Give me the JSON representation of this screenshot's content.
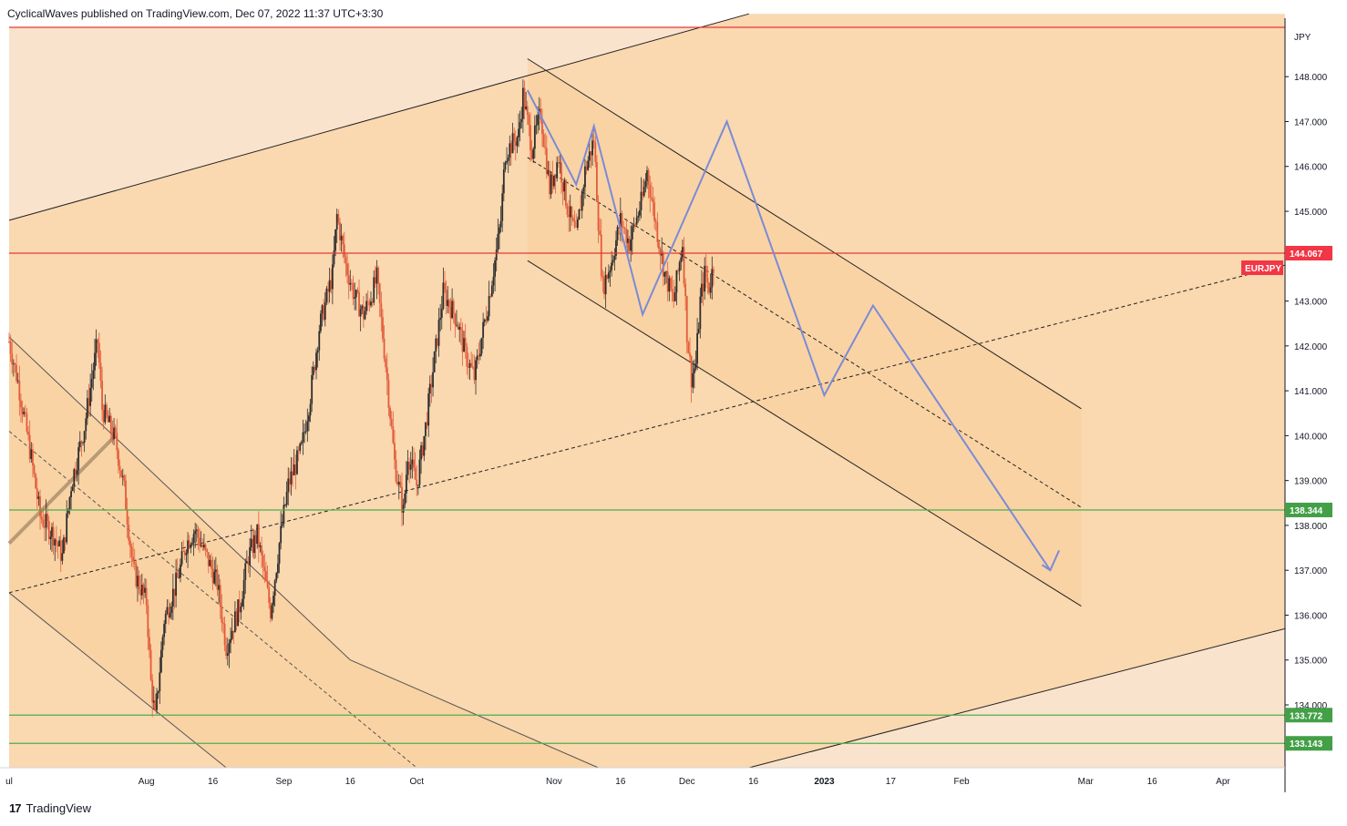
{
  "header": {
    "publisher": "CyclicalWaves published on TradingView.com, Dec 07, 2022 11:37 UTC+3:30"
  },
  "footer": {
    "brand": "TradingView",
    "logo_glyph": "17"
  },
  "colors": {
    "bg_light": "#fae3cc",
    "bg_mid": "#fad8b0",
    "bg_dark": "#f9cf9a",
    "up_candle": "#2d2d2d",
    "down_candle": "#e25c3b",
    "red_line": "#e53935",
    "green_line": "#4caf50",
    "projection": "#7a8bd6",
    "price_label_red": "#f23645",
    "price_label_green": "#43a047"
  },
  "chart_data": {
    "type": "candlestick",
    "symbol": "EURJPY",
    "currency": "JPY",
    "ylim": [
      132.6,
      149.1
    ],
    "y_ticks": [
      134,
      135,
      136,
      137,
      138,
      139,
      140,
      141,
      142,
      143,
      144,
      145,
      146,
      147,
      148
    ],
    "y_tick_labels": [
      "134.000",
      "135.000",
      "136.000",
      "137.000",
      "138.000",
      "139.000",
      "140.000",
      "141.000",
      "142.000",
      "143.000",
      "144.000",
      "145.000",
      "146.000",
      "147.000",
      "148.000"
    ],
    "x_range": [
      "2022-07-01",
      "2023-04-15"
    ],
    "x_ticks": [
      {
        "date": "2022-07-01",
        "label": "ul"
      },
      {
        "date": "2022-08-01",
        "label": "Aug"
      },
      {
        "date": "2022-08-16",
        "label": "16"
      },
      {
        "date": "2022-09-01",
        "label": "Sep"
      },
      {
        "date": "2022-09-16",
        "label": "16"
      },
      {
        "date": "2022-10-01",
        "label": "Oct"
      },
      {
        "date": "2022-11-01",
        "label": "Nov"
      },
      {
        "date": "2022-11-16",
        "label": "16"
      },
      {
        "date": "2022-12-01",
        "label": "Dec"
      },
      {
        "date": "2022-12-16",
        "label": "16"
      },
      {
        "date": "2023-01-01",
        "label": "2023"
      },
      {
        "date": "2023-01-16",
        "label": "17"
      },
      {
        "date": "2023-02-01",
        "label": "Feb"
      },
      {
        "date": "2023-03-01",
        "label": "Mar"
      },
      {
        "date": "2023-03-16",
        "label": "16"
      },
      {
        "date": "2023-04-01",
        "label": "Apr"
      }
    ],
    "price_path": [
      [
        "2022-07-01",
        142.1
      ],
      [
        "2022-07-03",
        141.2
      ],
      [
        "2022-07-06",
        139.5
      ],
      [
        "2022-07-08",
        138.2
      ],
      [
        "2022-07-11",
        137.8
      ],
      [
        "2022-07-13",
        137.3
      ],
      [
        "2022-07-15",
        138.9
      ],
      [
        "2022-07-18",
        140.2
      ],
      [
        "2022-07-20",
        141.5
      ],
      [
        "2022-07-21",
        142.1
      ],
      [
        "2022-07-22",
        140.6
      ],
      [
        "2022-07-25",
        139.9
      ],
      [
        "2022-07-27",
        138.8
      ],
      [
        "2022-07-29",
        137.0
      ],
      [
        "2022-08-01",
        136.3
      ],
      [
        "2022-08-02",
        134.5
      ],
      [
        "2022-08-03",
        133.7
      ],
      [
        "2022-08-05",
        135.9
      ],
      [
        "2022-08-08",
        136.8
      ],
      [
        "2022-08-10",
        137.6
      ],
      [
        "2022-08-12",
        137.9
      ],
      [
        "2022-08-15",
        137.2
      ],
      [
        "2022-08-17",
        136.7
      ],
      [
        "2022-08-19",
        135.3
      ],
      [
        "2022-08-22",
        136.2
      ],
      [
        "2022-08-24",
        137.3
      ],
      [
        "2022-08-26",
        137.8
      ],
      [
        "2022-08-29",
        136.1
      ],
      [
        "2022-08-31",
        137.6
      ],
      [
        "2022-09-02",
        138.9
      ],
      [
        "2022-09-05",
        139.7
      ],
      [
        "2022-09-07",
        140.9
      ],
      [
        "2022-09-09",
        142.4
      ],
      [
        "2022-09-12",
        143.6
      ],
      [
        "2022-09-13",
        144.9
      ],
      [
        "2022-09-15",
        143.8
      ],
      [
        "2022-09-17",
        143.1
      ],
      [
        "2022-09-19",
        142.7
      ],
      [
        "2022-09-21",
        143.2
      ],
      [
        "2022-09-22",
        143.5
      ],
      [
        "2022-09-24",
        141.6
      ],
      [
        "2022-09-26",
        139.4
      ],
      [
        "2022-09-28",
        138.3
      ],
      [
        "2022-09-29",
        139.6
      ],
      [
        "2022-10-01",
        138.9
      ],
      [
        "2022-10-03",
        140.2
      ],
      [
        "2022-10-05",
        141.7
      ],
      [
        "2022-10-07",
        143.2
      ],
      [
        "2022-10-10",
        142.6
      ],
      [
        "2022-10-12",
        141.8
      ],
      [
        "2022-10-14",
        141.3
      ],
      [
        "2022-10-17",
        142.9
      ],
      [
        "2022-10-19",
        144.1
      ],
      [
        "2022-10-20",
        144.8
      ],
      [
        "2022-10-21",
        146.3
      ],
      [
        "2022-10-24",
        146.7
      ],
      [
        "2022-10-25",
        147.6
      ],
      [
        "2022-10-27",
        146.4
      ],
      [
        "2022-10-29",
        147.2
      ],
      [
        "2022-10-31",
        145.5
      ],
      [
        "2022-11-02",
        146.2
      ],
      [
        "2022-11-04",
        145.1
      ],
      [
        "2022-11-06",
        144.4
      ],
      [
        "2022-11-08",
        145.9
      ],
      [
        "2022-11-10",
        146.6
      ],
      [
        "2022-11-11",
        144.8
      ],
      [
        "2022-11-12",
        143.3
      ],
      [
        "2022-11-14",
        143.9
      ],
      [
        "2022-11-16",
        144.8
      ],
      [
        "2022-11-18",
        144.3
      ],
      [
        "2022-11-21",
        145.3
      ],
      [
        "2022-11-22",
        145.9
      ],
      [
        "2022-11-24",
        144.7
      ],
      [
        "2022-11-26",
        143.6
      ],
      [
        "2022-11-28",
        143.0
      ],
      [
        "2022-11-30",
        144.3
      ],
      [
        "2022-12-01",
        142.3
      ],
      [
        "2022-12-02",
        141.3
      ],
      [
        "2022-12-03",
        141.6
      ],
      [
        "2022-12-04",
        143.0
      ],
      [
        "2022-12-05",
        143.6
      ],
      [
        "2022-12-06",
        143.3
      ],
      [
        "2022-12-07",
        143.8
      ]
    ],
    "current_price": 144.067,
    "levels": [
      {
        "name": "resistance",
        "value": 144.067,
        "color": "#e53935",
        "label": "144.067"
      },
      {
        "name": "support-1",
        "value": 138.344,
        "color": "#4caf50",
        "label": "138.344"
      },
      {
        "name": "support-2",
        "value": 133.772,
        "color": "#4caf50",
        "label": "133.772"
      },
      {
        "name": "support-3",
        "value": 133.143,
        "color": "#4caf50",
        "label": "133.143"
      },
      {
        "name": "top-level",
        "value": 149.1,
        "color": "#e53935",
        "label": ""
      }
    ],
    "symbol_label": "EURJPY",
    "projection_path": [
      [
        "2022-10-26",
        147.7
      ],
      [
        "2022-11-06",
        145.6
      ],
      [
        "2022-11-10",
        146.9
      ],
      [
        "2022-11-21",
        142.7
      ],
      [
        "2022-12-10",
        147.0
      ],
      [
        "2023-01-01",
        140.9
      ],
      [
        "2023-01-12",
        142.9
      ],
      [
        "2023-02-21",
        137.0
      ]
    ],
    "projection_arrow_tip": [
      "2023-02-23",
      137.2
    ],
    "lines": {
      "upper_channel_top": [
        [
          "2022-07-01",
          144.8
        ],
        [
          "2022-12-15",
          149.4
        ]
      ],
      "lower_channel_bottom": [
        [
          "2022-12-15",
          132.6
        ],
        [
          "2023-04-15",
          135.7
        ]
      ],
      "mid_dashed": [
        [
          "2022-07-01",
          136.5
        ],
        [
          "2023-04-15",
          143.8
        ]
      ],
      "down_channel_top": [
        [
          "2022-10-26",
          148.4
        ],
        [
          "2023-02-28",
          140.6
        ]
      ],
      "down_channel_bottom": [
        [
          "2022-10-26",
          143.9
        ],
        [
          "2023-02-28",
          136.2
        ]
      ],
      "down_channel_mid": [
        [
          "2022-10-26",
          146.2
        ],
        [
          "2023-02-28",
          138.4
        ]
      ],
      "old_channel_top": [
        [
          "2022-07-01",
          142.2
        ],
        [
          "2022-09-16",
          135.0
        ],
        [
          "2022-11-11",
          132.6
        ]
      ],
      "old_channel_mid": [
        [
          "2022-07-01",
          140.1
        ],
        [
          "2022-10-01",
          132.6
        ]
      ],
      "old_channel_bottom": [
        [
          "2022-07-01",
          136.5
        ],
        [
          "2022-08-19",
          132.6
        ]
      ],
      "trend_stroke": [
        [
          "2022-07-01",
          137.6
        ],
        [
          "2022-07-25",
          140.0
        ]
      ]
    }
  }
}
